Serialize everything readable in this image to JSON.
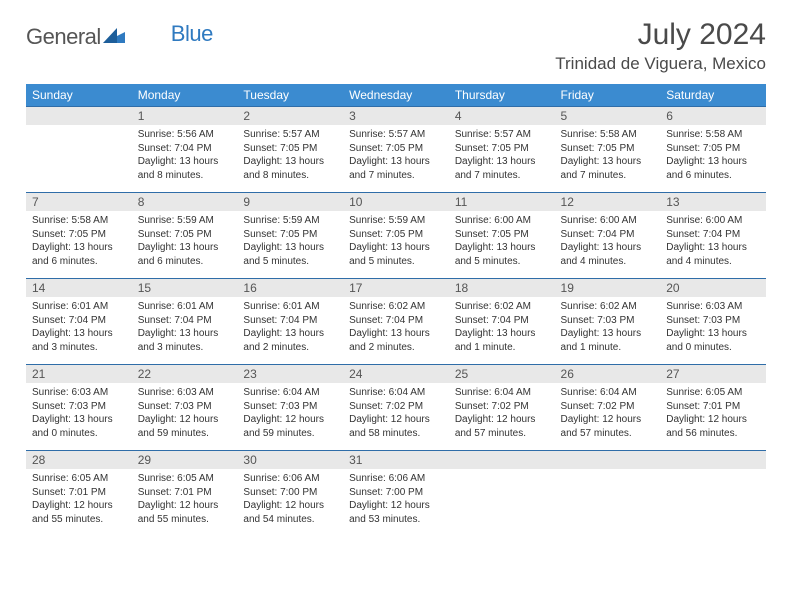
{
  "brand": {
    "text1": "General",
    "text2": "Blue"
  },
  "title": "July 2024",
  "location": "Trinidad de Viguera, Mexico",
  "dow": [
    "Sunday",
    "Monday",
    "Tuesday",
    "Wednesday",
    "Thursday",
    "Friday",
    "Saturday"
  ],
  "colors": {
    "header_bg": "#3b8bd0",
    "header_fg": "#ffffff",
    "week_border": "#2f6da8",
    "daynum_bg": "#e8e8e8",
    "text": "#333333"
  },
  "weeks": [
    [
      {
        "n": "",
        "lines": []
      },
      {
        "n": "1",
        "lines": [
          "Sunrise: 5:56 AM",
          "Sunset: 7:04 PM",
          "Daylight: 13 hours and 8 minutes."
        ]
      },
      {
        "n": "2",
        "lines": [
          "Sunrise: 5:57 AM",
          "Sunset: 7:05 PM",
          "Daylight: 13 hours and 8 minutes."
        ]
      },
      {
        "n": "3",
        "lines": [
          "Sunrise: 5:57 AM",
          "Sunset: 7:05 PM",
          "Daylight: 13 hours and 7 minutes."
        ]
      },
      {
        "n": "4",
        "lines": [
          "Sunrise: 5:57 AM",
          "Sunset: 7:05 PM",
          "Daylight: 13 hours and 7 minutes."
        ]
      },
      {
        "n": "5",
        "lines": [
          "Sunrise: 5:58 AM",
          "Sunset: 7:05 PM",
          "Daylight: 13 hours and 7 minutes."
        ]
      },
      {
        "n": "6",
        "lines": [
          "Sunrise: 5:58 AM",
          "Sunset: 7:05 PM",
          "Daylight: 13 hours and 6 minutes."
        ]
      }
    ],
    [
      {
        "n": "7",
        "lines": [
          "Sunrise: 5:58 AM",
          "Sunset: 7:05 PM",
          "Daylight: 13 hours and 6 minutes."
        ]
      },
      {
        "n": "8",
        "lines": [
          "Sunrise: 5:59 AM",
          "Sunset: 7:05 PM",
          "Daylight: 13 hours and 6 minutes."
        ]
      },
      {
        "n": "9",
        "lines": [
          "Sunrise: 5:59 AM",
          "Sunset: 7:05 PM",
          "Daylight: 13 hours and 5 minutes."
        ]
      },
      {
        "n": "10",
        "lines": [
          "Sunrise: 5:59 AM",
          "Sunset: 7:05 PM",
          "Daylight: 13 hours and 5 minutes."
        ]
      },
      {
        "n": "11",
        "lines": [
          "Sunrise: 6:00 AM",
          "Sunset: 7:05 PM",
          "Daylight: 13 hours and 5 minutes."
        ]
      },
      {
        "n": "12",
        "lines": [
          "Sunrise: 6:00 AM",
          "Sunset: 7:04 PM",
          "Daylight: 13 hours and 4 minutes."
        ]
      },
      {
        "n": "13",
        "lines": [
          "Sunrise: 6:00 AM",
          "Sunset: 7:04 PM",
          "Daylight: 13 hours and 4 minutes."
        ]
      }
    ],
    [
      {
        "n": "14",
        "lines": [
          "Sunrise: 6:01 AM",
          "Sunset: 7:04 PM",
          "Daylight: 13 hours and 3 minutes."
        ]
      },
      {
        "n": "15",
        "lines": [
          "Sunrise: 6:01 AM",
          "Sunset: 7:04 PM",
          "Daylight: 13 hours and 3 minutes."
        ]
      },
      {
        "n": "16",
        "lines": [
          "Sunrise: 6:01 AM",
          "Sunset: 7:04 PM",
          "Daylight: 13 hours and 2 minutes."
        ]
      },
      {
        "n": "17",
        "lines": [
          "Sunrise: 6:02 AM",
          "Sunset: 7:04 PM",
          "Daylight: 13 hours and 2 minutes."
        ]
      },
      {
        "n": "18",
        "lines": [
          "Sunrise: 6:02 AM",
          "Sunset: 7:04 PM",
          "Daylight: 13 hours and 1 minute."
        ]
      },
      {
        "n": "19",
        "lines": [
          "Sunrise: 6:02 AM",
          "Sunset: 7:03 PM",
          "Daylight: 13 hours and 1 minute."
        ]
      },
      {
        "n": "20",
        "lines": [
          "Sunrise: 6:03 AM",
          "Sunset: 7:03 PM",
          "Daylight: 13 hours and 0 minutes."
        ]
      }
    ],
    [
      {
        "n": "21",
        "lines": [
          "Sunrise: 6:03 AM",
          "Sunset: 7:03 PM",
          "Daylight: 13 hours and 0 minutes."
        ]
      },
      {
        "n": "22",
        "lines": [
          "Sunrise: 6:03 AM",
          "Sunset: 7:03 PM",
          "Daylight: 12 hours and 59 minutes."
        ]
      },
      {
        "n": "23",
        "lines": [
          "Sunrise: 6:04 AM",
          "Sunset: 7:03 PM",
          "Daylight: 12 hours and 59 minutes."
        ]
      },
      {
        "n": "24",
        "lines": [
          "Sunrise: 6:04 AM",
          "Sunset: 7:02 PM",
          "Daylight: 12 hours and 58 minutes."
        ]
      },
      {
        "n": "25",
        "lines": [
          "Sunrise: 6:04 AM",
          "Sunset: 7:02 PM",
          "Daylight: 12 hours and 57 minutes."
        ]
      },
      {
        "n": "26",
        "lines": [
          "Sunrise: 6:04 AM",
          "Sunset: 7:02 PM",
          "Daylight: 12 hours and 57 minutes."
        ]
      },
      {
        "n": "27",
        "lines": [
          "Sunrise: 6:05 AM",
          "Sunset: 7:01 PM",
          "Daylight: 12 hours and 56 minutes."
        ]
      }
    ],
    [
      {
        "n": "28",
        "lines": [
          "Sunrise: 6:05 AM",
          "Sunset: 7:01 PM",
          "Daylight: 12 hours and 55 minutes."
        ]
      },
      {
        "n": "29",
        "lines": [
          "Sunrise: 6:05 AM",
          "Sunset: 7:01 PM",
          "Daylight: 12 hours and 55 minutes."
        ]
      },
      {
        "n": "30",
        "lines": [
          "Sunrise: 6:06 AM",
          "Sunset: 7:00 PM",
          "Daylight: 12 hours and 54 minutes."
        ]
      },
      {
        "n": "31",
        "lines": [
          "Sunrise: 6:06 AM",
          "Sunset: 7:00 PM",
          "Daylight: 12 hours and 53 minutes."
        ]
      },
      {
        "n": "",
        "lines": []
      },
      {
        "n": "",
        "lines": []
      },
      {
        "n": "",
        "lines": []
      }
    ]
  ]
}
